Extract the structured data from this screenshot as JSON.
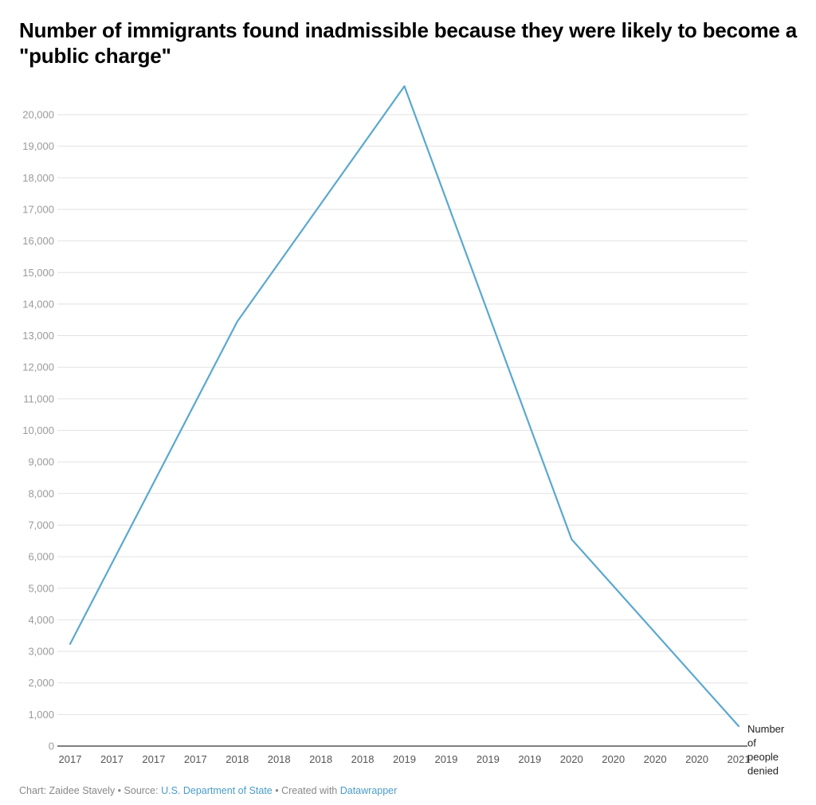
{
  "header": {
    "title": "Number of immigrants found inadmissible because they were likely to become a \"public charge\""
  },
  "footer": {
    "chart_prefix": "Chart: Zaidee Stavely",
    "separator": " • ",
    "source_prefix": "Source: ",
    "source_link": "U.S. Department of State",
    "created_prefix": "Created with ",
    "created_link": "Datawrapper"
  },
  "chart_data": {
    "type": "line",
    "title": "Number of immigrants found inadmissible because they were likely to become a \"public charge\"",
    "xlabel": "",
    "ylabel": "",
    "ylim": [
      0,
      21000
    ],
    "y_ticks": [
      0,
      1000,
      2000,
      3000,
      4000,
      5000,
      6000,
      7000,
      8000,
      9000,
      10000,
      11000,
      12000,
      13000,
      14000,
      15000,
      16000,
      17000,
      18000,
      19000,
      20000
    ],
    "y_tick_labels": [
      "0",
      "1,000",
      "2,000",
      "3,000",
      "4,000",
      "5,000",
      "6,000",
      "7,000",
      "8,000",
      "9,000",
      "10,000",
      "11,000",
      "12,000",
      "13,000",
      "14,000",
      "15,000",
      "16,000",
      "17,000",
      "18,000",
      "19,000",
      "20,000"
    ],
    "x_tick_labels": [
      "2017",
      "2017",
      "2017",
      "2017",
      "2018",
      "2018",
      "2018",
      "2018",
      "2019",
      "2019",
      "2019",
      "2019",
      "2020",
      "2020",
      "2020",
      "2020",
      "2021"
    ],
    "grid": true,
    "line_color": "#5aa8cf",
    "series": [
      {
        "label_lines": [
          "Number",
          "of",
          "people",
          "denied"
        ],
        "x": [
          2017,
          2018,
          2019,
          2020,
          2021
        ],
        "y": [
          3237,
          13450,
          20900,
          6550,
          630
        ]
      }
    ]
  }
}
